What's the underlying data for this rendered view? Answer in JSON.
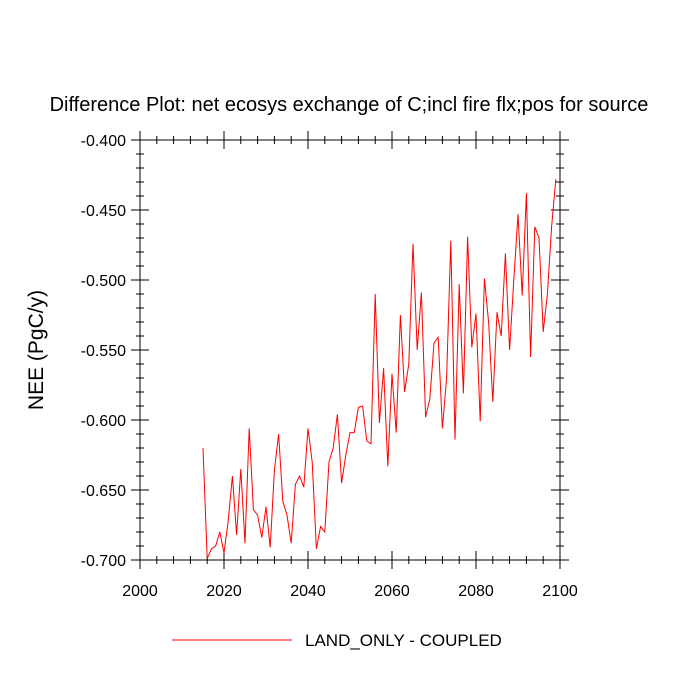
{
  "chart_data": {
    "type": "line",
    "title": "Difference Plot: net ecosys exchange of C;incl fire flx;pos for source",
    "ylabel": "NEE  (PgC/y)",
    "xlabel": "",
    "xlim": [
      2000,
      2100
    ],
    "ylim": [
      -0.7,
      -0.4
    ],
    "xticks": [
      2000,
      2020,
      2040,
      2060,
      2080,
      2100
    ],
    "xtick_labels": [
      "2000",
      "2020",
      "2040",
      "2060",
      "2080",
      "2100"
    ],
    "yticks": [
      -0.4,
      -0.45,
      -0.5,
      -0.55,
      -0.6,
      -0.65,
      -0.7
    ],
    "ytick_labels": [
      "-0.400",
      "-0.450",
      "-0.500",
      "-0.550",
      "-0.600",
      "-0.650",
      "-0.700"
    ],
    "grid": false,
    "legend_position": "bottom",
    "series": [
      {
        "name": "LAND_ONLY - COUPLED",
        "color": "#ff0000",
        "x": [
          2015,
          2016,
          2017,
          2018,
          2019,
          2020,
          2021,
          2022,
          2023,
          2024,
          2025,
          2026,
          2027,
          2028,
          2029,
          2030,
          2031,
          2032,
          2033,
          2034,
          2035,
          2036,
          2037,
          2038,
          2039,
          2040,
          2041,
          2042,
          2043,
          2044,
          2045,
          2046,
          2047,
          2048,
          2049,
          2050,
          2051,
          2052,
          2053,
          2054,
          2055,
          2056,
          2057,
          2058,
          2059,
          2060,
          2061,
          2062,
          2063,
          2064,
          2065,
          2066,
          2067,
          2068,
          2069,
          2070,
          2071,
          2072,
          2073,
          2074,
          2075,
          2076,
          2077,
          2078,
          2079,
          2080,
          2081,
          2082,
          2083,
          2084,
          2085,
          2086,
          2087,
          2088,
          2089,
          2090,
          2091,
          2092,
          2093,
          2094,
          2095,
          2096,
          2097,
          2098,
          2099
        ],
        "values": [
          -0.62,
          -0.699,
          -0.692,
          -0.69,
          -0.68,
          -0.695,
          -0.672,
          -0.64,
          -0.682,
          -0.635,
          -0.688,
          -0.606,
          -0.664,
          -0.668,
          -0.684,
          -0.662,
          -0.691,
          -0.636,
          -0.61,
          -0.658,
          -0.668,
          -0.688,
          -0.646,
          -0.64,
          -0.648,
          -0.606,
          -0.63,
          -0.692,
          -0.676,
          -0.68,
          -0.63,
          -0.62,
          -0.596,
          -0.645,
          -0.625,
          -0.609,
          -0.609,
          -0.591,
          -0.59,
          -0.615,
          -0.617,
          -0.51,
          -0.602,
          -0.563,
          -0.633,
          -0.567,
          -0.609,
          -0.525,
          -0.58,
          -0.56,
          -0.474,
          -0.55,
          -0.509,
          -0.598,
          -0.585,
          -0.545,
          -0.541,
          -0.606,
          -0.57,
          -0.472,
          -0.614,
          -0.503,
          -0.581,
          -0.469,
          -0.548,
          -0.524,
          -0.601,
          -0.499,
          -0.53,
          -0.587,
          -0.523,
          -0.54,
          -0.481,
          -0.55,
          -0.5,
          -0.453,
          -0.511,
          -0.438,
          -0.555,
          -0.462,
          -0.47,
          -0.537,
          -0.51,
          -0.462,
          -0.428
        ]
      }
    ]
  }
}
